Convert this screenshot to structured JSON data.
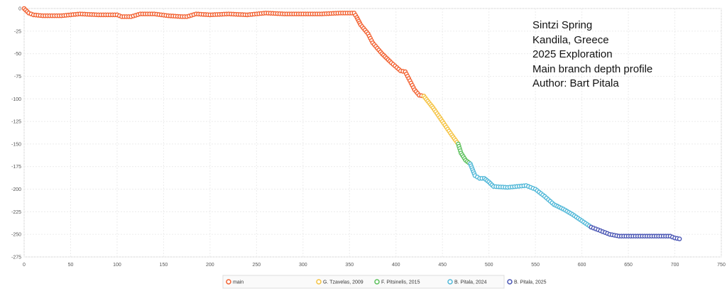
{
  "chart_data": {
    "type": "line",
    "title": "",
    "xlabel": "",
    "ylabel": "",
    "xlim": [
      0,
      750
    ],
    "ylim": [
      -275,
      0
    ],
    "x_ticks": [
      0,
      50,
      100,
      150,
      200,
      250,
      300,
      350,
      400,
      450,
      500,
      550,
      600,
      650,
      700,
      750
    ],
    "y_ticks": [
      0,
      -25,
      -50,
      -75,
      -100,
      -125,
      -150,
      -175,
      -200,
      -225,
      -250,
      -275
    ],
    "grid": true,
    "legend_position": "bottom",
    "annotation_lines": [
      "Sintzi Spring",
      "Kandila, Greece",
      "2025 Exploration",
      "Main branch depth profile",
      "Author: Bart Pitala"
    ],
    "series": [
      {
        "name": "main",
        "color": "#f26131",
        "points": [
          [
            0,
            0
          ],
          [
            5,
            -5
          ],
          [
            10,
            -7
          ],
          [
            20,
            -8
          ],
          [
            40,
            -8
          ],
          [
            60,
            -6
          ],
          [
            80,
            -7
          ],
          [
            100,
            -7
          ],
          [
            105,
            -9
          ],
          [
            115,
            -9
          ],
          [
            125,
            -6
          ],
          [
            140,
            -6
          ],
          [
            155,
            -8
          ],
          [
            170,
            -9
          ],
          [
            175,
            -9
          ],
          [
            185,
            -6
          ],
          [
            200,
            -7
          ],
          [
            220,
            -6
          ],
          [
            240,
            -7
          ],
          [
            260,
            -5
          ],
          [
            280,
            -6
          ],
          [
            300,
            -6
          ],
          [
            320,
            -6
          ],
          [
            340,
            -5
          ],
          [
            355,
            -5
          ],
          [
            358,
            -10
          ],
          [
            362,
            -18
          ],
          [
            370,
            -28
          ],
          [
            375,
            -38
          ],
          [
            385,
            -50
          ],
          [
            395,
            -60
          ],
          [
            405,
            -69
          ],
          [
            410,
            -70
          ],
          [
            415,
            -80
          ],
          [
            420,
            -90
          ],
          [
            425,
            -96
          ],
          [
            430,
            -97
          ]
        ]
      },
      {
        "name": "G. Tzavelas, 2009",
        "color": "#f5c342",
        "points": [
          [
            430,
            -97
          ],
          [
            440,
            -110
          ],
          [
            450,
            -125
          ],
          [
            460,
            -140
          ],
          [
            467,
            -150
          ]
        ]
      },
      {
        "name": "F. Pitsinelis, 2015",
        "color": "#5cc05c",
        "points": [
          [
            467,
            -150
          ],
          [
            470,
            -160
          ],
          [
            475,
            -168
          ],
          [
            480,
            -172
          ]
        ]
      },
      {
        "name": "B. Pitala, 2024",
        "color": "#52b8d8",
        "points": [
          [
            480,
            -172
          ],
          [
            485,
            -185
          ],
          [
            490,
            -188
          ],
          [
            495,
            -188
          ],
          [
            500,
            -192
          ],
          [
            505,
            -197
          ],
          [
            520,
            -198
          ],
          [
            540,
            -196
          ],
          [
            550,
            -200
          ],
          [
            560,
            -208
          ],
          [
            570,
            -217
          ],
          [
            580,
            -222
          ],
          [
            590,
            -228
          ],
          [
            600,
            -235
          ],
          [
            610,
            -242
          ]
        ]
      },
      {
        "name": "B. Pitala, 2025",
        "color": "#4a56b4",
        "points": [
          [
            610,
            -242
          ],
          [
            620,
            -246
          ],
          [
            630,
            -250
          ],
          [
            640,
            -252
          ],
          [
            660,
            -252
          ],
          [
            680,
            -252
          ],
          [
            695,
            -252
          ],
          [
            700,
            -254
          ],
          [
            705,
            -255
          ]
        ]
      }
    ]
  }
}
